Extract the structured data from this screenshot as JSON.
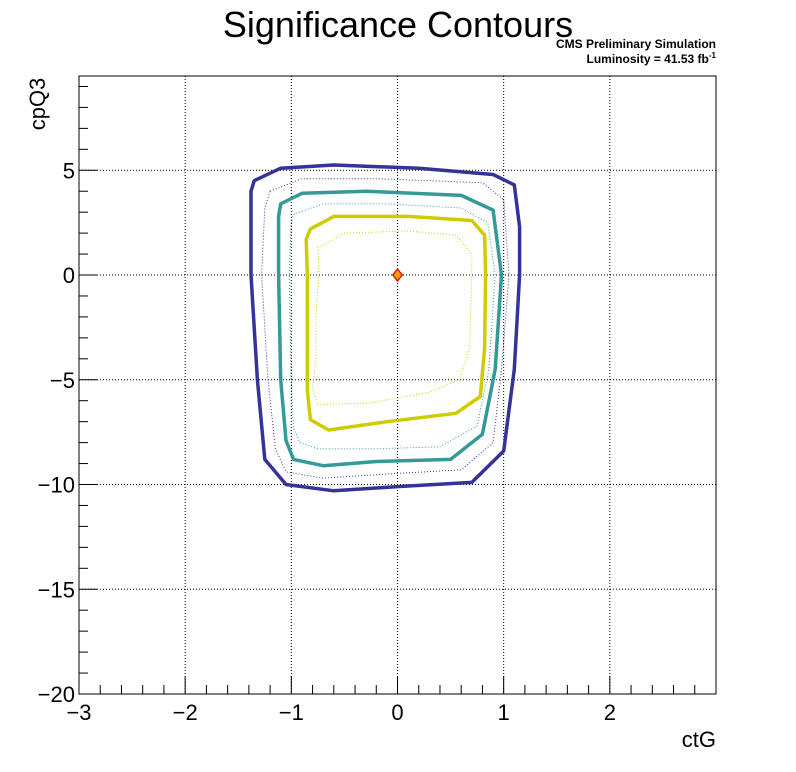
{
  "chart_data": {
    "type": "contour",
    "title": "Significance Contours",
    "annotations": [
      "CMS Preliminary Simulation",
      "Luminosity = 41.53 fb",
      "-1"
    ],
    "xlabel": "ctG",
    "ylabel": "cpQ3",
    "xlim": [
      -3,
      3
    ],
    "ylim": [
      -20,
      9.5
    ],
    "x_ticks": [
      -3,
      -2,
      -1,
      0,
      1,
      2
    ],
    "x_tick_labels": [
      "−3",
      "−2",
      "−1",
      "0",
      "1",
      "2"
    ],
    "y_ticks": [
      -20,
      -15,
      -10,
      -5,
      0,
      5
    ],
    "y_tick_labels": [
      "−20",
      "−15",
      "−10",
      "−5",
      "0",
      "5"
    ],
    "grid": true,
    "best_fit": {
      "x": 0,
      "y": 0,
      "fill": "#ff9900",
      "stroke": "#cc0000"
    },
    "series": [
      {
        "color": "#333399",
        "style": "solid",
        "points": [
          [
            -1.35,
            4.5
          ],
          [
            -1.1,
            5.1
          ],
          [
            -0.6,
            5.25
          ],
          [
            0.2,
            5.1
          ],
          [
            0.9,
            4.8
          ],
          [
            1.1,
            4.3
          ],
          [
            1.15,
            2.3
          ],
          [
            1.15,
            0.0
          ],
          [
            1.1,
            -4.5
          ],
          [
            1.0,
            -8.4
          ],
          [
            0.7,
            -9.9
          ],
          [
            0,
            -10.1
          ],
          [
            -0.6,
            -10.3
          ],
          [
            -1.05,
            -10.0
          ],
          [
            -1.25,
            -8.8
          ],
          [
            -1.32,
            -5
          ],
          [
            -1.38,
            0
          ],
          [
            -1.38,
            4.0
          ]
        ]
      },
      {
        "color": "#333399",
        "style": "dotted",
        "points": [
          [
            -1.2,
            4.0
          ],
          [
            -0.9,
            4.6
          ],
          [
            -0.2,
            4.6
          ],
          [
            0.8,
            4.4
          ],
          [
            1.0,
            3.6
          ],
          [
            1.05,
            0.0
          ],
          [
            0.98,
            -4.5
          ],
          [
            0.9,
            -8.0
          ],
          [
            0.6,
            -9.3
          ],
          [
            -0.1,
            -9.5
          ],
          [
            -0.7,
            -9.7
          ],
          [
            -1.05,
            -9.4
          ],
          [
            -1.15,
            -8.3
          ],
          [
            -1.22,
            -5
          ],
          [
            -1.28,
            0
          ],
          [
            -1.25,
            3.2
          ]
        ]
      },
      {
        "color": "#339999",
        "style": "solid",
        "points": [
          [
            -1.1,
            3.4
          ],
          [
            -0.9,
            3.9
          ],
          [
            -0.3,
            4.0
          ],
          [
            0.6,
            3.8
          ],
          [
            0.9,
            3.1
          ],
          [
            0.98,
            0.0
          ],
          [
            0.92,
            -4.5
          ],
          [
            0.8,
            -7.6
          ],
          [
            0.5,
            -8.8
          ],
          [
            -0.2,
            -8.9
          ],
          [
            -0.7,
            -9.1
          ],
          [
            -0.98,
            -8.8
          ],
          [
            -1.05,
            -7.9
          ],
          [
            -1.1,
            -5
          ],
          [
            -1.12,
            0
          ],
          [
            -1.12,
            2.8
          ]
        ]
      },
      {
        "color": "#339999",
        "style": "dotted",
        "points": [
          [
            -0.98,
            2.9
          ],
          [
            -0.7,
            3.4
          ],
          [
            -0.1,
            3.4
          ],
          [
            0.6,
            3.2
          ],
          [
            0.85,
            2.5
          ],
          [
            0.92,
            0.0
          ],
          [
            0.86,
            -4.5
          ],
          [
            0.75,
            -7.2
          ],
          [
            0.4,
            -8.2
          ],
          [
            -0.25,
            -8.3
          ],
          [
            -0.75,
            -8.3
          ],
          [
            -0.92,
            -8.0
          ],
          [
            -0.98,
            -7.3
          ],
          [
            -1.0,
            -5
          ],
          [
            -1.02,
            0
          ],
          [
            -1.0,
            2.5
          ]
        ]
      },
      {
        "color": "#cccc00",
        "style": "solid",
        "points": [
          [
            -0.82,
            2.2
          ],
          [
            -0.6,
            2.8
          ],
          [
            0.1,
            2.8
          ],
          [
            0.7,
            2.6
          ],
          [
            0.82,
            1.9
          ],
          [
            0.83,
            0.0
          ],
          [
            0.82,
            -3.5
          ],
          [
            0.78,
            -5.8
          ],
          [
            0.55,
            -6.6
          ],
          [
            -0.1,
            -7.0
          ],
          [
            -0.65,
            -7.4
          ],
          [
            -0.82,
            -6.9
          ],
          [
            -0.85,
            -5.5
          ],
          [
            -0.85,
            -2.0
          ],
          [
            -0.85,
            0.0
          ],
          [
            -0.86,
            1.7
          ]
        ]
      },
      {
        "color": "#cccc00",
        "style": "dotted",
        "points": [
          [
            -0.75,
            1.3
          ],
          [
            -0.5,
            2.0
          ],
          [
            0.1,
            2.1
          ],
          [
            0.55,
            1.9
          ],
          [
            0.7,
            1.0
          ],
          [
            0.7,
            0.0
          ],
          [
            0.68,
            -3.5
          ],
          [
            0.58,
            -5.0
          ],
          [
            0.3,
            -5.6
          ],
          [
            -0.25,
            -6.1
          ],
          [
            -0.75,
            -6.2
          ],
          [
            -0.8,
            -5.4
          ],
          [
            -0.77,
            -4.0
          ],
          [
            -0.77,
            -2.0
          ],
          [
            -0.74,
            0.0
          ]
        ]
      }
    ]
  }
}
